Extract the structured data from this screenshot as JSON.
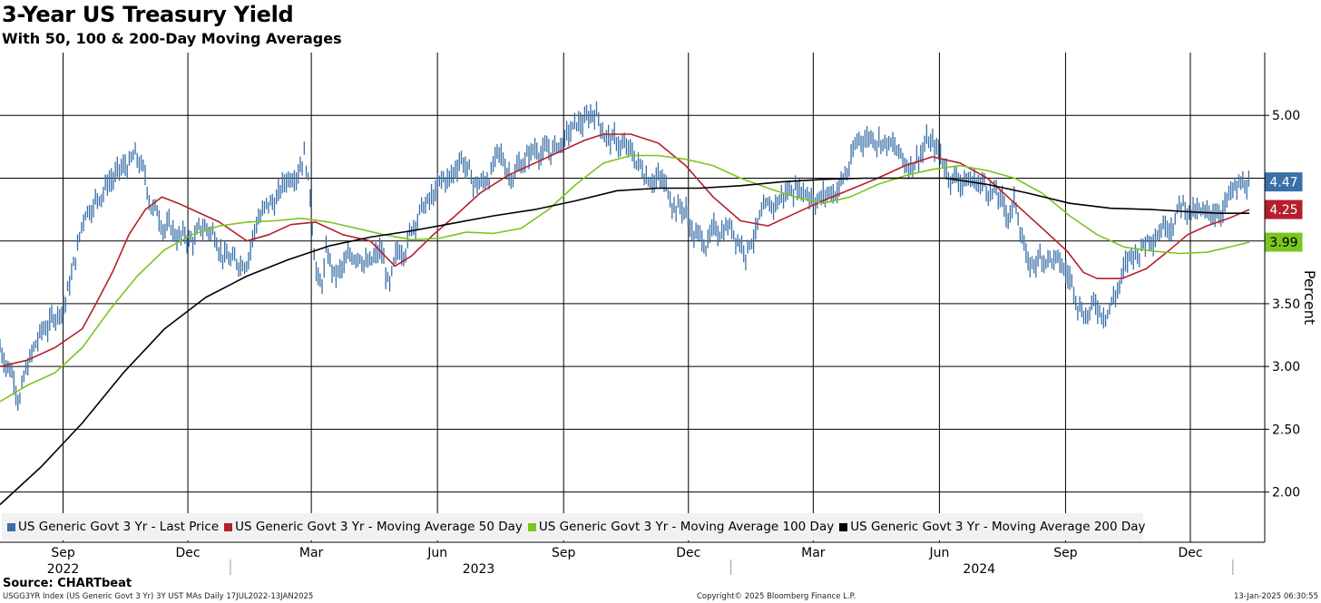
{
  "header": {
    "title": "3-Year US Treasury Yield",
    "subtitle": "With 50, 100 & 200-Day Moving Averages"
  },
  "source": "Source: CHARTbeat",
  "footer": {
    "left": "USGG3YR Index (US Generic Govt 3 Yr) 3Y UST MAs  Daily 17JUL2022-13JAN2025",
    "center": "Copyright© 2025 Bloomberg Finance L.P.",
    "right": "13-Jan-2025 06:30:55"
  },
  "colors": {
    "price": "#3a6fa8",
    "ma50": "#b3202c",
    "ma100": "#7cc520",
    "ma200": "#000000",
    "grid": "#000000"
  },
  "chart_data": {
    "type": "line",
    "title": "3-Year US Treasury Yield",
    "subtitle": "With 50, 100 & 200-Day Moving Averages",
    "ylabel": "Percent",
    "ylim": [
      1.6,
      5.5
    ],
    "yticks": [
      2.0,
      2.5,
      3.0,
      3.5,
      4.0,
      4.5,
      5.0
    ],
    "ytick_labels": [
      "2.00",
      "2.50",
      "3.00",
      "3.50",
      "4.00",
      "4.50",
      "5.00"
    ],
    "x_range_days": [
      0,
      911
    ],
    "x_ticks": [
      {
        "day": 46,
        "label": "Sep"
      },
      {
        "day": 137,
        "label": "Dec"
      },
      {
        "day": 227,
        "label": "Mar"
      },
      {
        "day": 319,
        "label": "Jun"
      },
      {
        "day": 411,
        "label": "Sep"
      },
      {
        "day": 502,
        "label": "Dec"
      },
      {
        "day": 593,
        "label": "Mar"
      },
      {
        "day": 685,
        "label": "Jun"
      },
      {
        "day": 777,
        "label": "Sep"
      },
      {
        "day": 868,
        "label": "Dec"
      }
    ],
    "year_labels": [
      {
        "label": "2022",
        "center_day": 46
      },
      {
        "label": "2023",
        "center_day": 349
      },
      {
        "label": "2024",
        "center_day": 714
      }
    ],
    "year_dividers": [
      168,
      533,
      899
    ],
    "series": [
      {
        "name": "US Generic Govt 3 Yr - Last Price",
        "color": "#3a6fa8",
        "points": [
          [
            0,
            3.15
          ],
          [
            10,
            2.95
          ],
          [
            14,
            2.78
          ],
          [
            22,
            3.05
          ],
          [
            30,
            3.25
          ],
          [
            40,
            3.4
          ],
          [
            48,
            3.55
          ],
          [
            55,
            3.85
          ],
          [
            62,
            4.25
          ],
          [
            70,
            4.35
          ],
          [
            80,
            4.5
          ],
          [
            90,
            4.55
          ],
          [
            98,
            4.65
          ],
          [
            104,
            4.55
          ],
          [
            110,
            4.3
          ],
          [
            118,
            4.18
          ],
          [
            128,
            4.05
          ],
          [
            140,
            4.0
          ],
          [
            150,
            4.1
          ],
          [
            158,
            4.05
          ],
          [
            165,
            3.88
          ],
          [
            172,
            3.8
          ],
          [
            180,
            3.9
          ],
          [
            188,
            4.2
          ],
          [
            200,
            4.3
          ],
          [
            210,
            4.5
          ],
          [
            218,
            4.65
          ],
          [
            222,
            4.75
          ],
          [
            226,
            4.4
          ],
          [
            230,
            3.85
          ],
          [
            234,
            3.6
          ],
          [
            238,
            3.9
          ],
          [
            244,
            3.7
          ],
          [
            250,
            3.75
          ],
          [
            256,
            3.85
          ],
          [
            262,
            3.95
          ],
          [
            270,
            3.8
          ],
          [
            278,
            3.9
          ],
          [
            284,
            3.6
          ],
          [
            290,
            3.85
          ],
          [
            296,
            4.0
          ],
          [
            305,
            4.25
          ],
          [
            314,
            4.3
          ],
          [
            322,
            4.45
          ],
          [
            330,
            4.5
          ],
          [
            336,
            4.7
          ],
          [
            340,
            4.6
          ],
          [
            345,
            4.45
          ],
          [
            352,
            4.45
          ],
          [
            362,
            4.65
          ],
          [
            372,
            4.55
          ],
          [
            382,
            4.65
          ],
          [
            392,
            4.75
          ],
          [
            400,
            4.7
          ],
          [
            410,
            4.78
          ],
          [
            420,
            4.9
          ],
          [
            428,
            4.95
          ],
          [
            434,
            5.05
          ],
          [
            440,
            4.9
          ],
          [
            446,
            4.8
          ],
          [
            454,
            4.75
          ],
          [
            462,
            4.65
          ],
          [
            470,
            4.55
          ],
          [
            478,
            4.55
          ],
          [
            486,
            4.4
          ],
          [
            494,
            4.3
          ],
          [
            500,
            4.25
          ],
          [
            506,
            4.05
          ],
          [
            514,
            4.0
          ],
          [
            522,
            4.05
          ],
          [
            530,
            4.15
          ],
          [
            538,
            4.05
          ],
          [
            544,
            3.95
          ],
          [
            548,
            4.05
          ],
          [
            554,
            4.15
          ],
          [
            560,
            4.2
          ],
          [
            570,
            4.35
          ],
          [
            580,
            4.45
          ],
          [
            590,
            4.4
          ],
          [
            600,
            4.35
          ],
          [
            610,
            4.42
          ],
          [
            618,
            4.55
          ],
          [
            626,
            4.8
          ],
          [
            634,
            4.85
          ],
          [
            642,
            4.85
          ],
          [
            650,
            4.75
          ],
          [
            660,
            4.6
          ],
          [
            668,
            4.68
          ],
          [
            676,
            4.8
          ],
          [
            684,
            4.7
          ],
          [
            692,
            4.55
          ],
          [
            700,
            4.5
          ],
          [
            710,
            4.48
          ],
          [
            718,
            4.45
          ],
          [
            726,
            4.38
          ],
          [
            734,
            4.2
          ],
          [
            740,
            4.3
          ],
          [
            746,
            4.05
          ],
          [
            750,
            3.75
          ],
          [
            756,
            3.85
          ],
          [
            764,
            3.9
          ],
          [
            772,
            3.8
          ],
          [
            780,
            3.7
          ],
          [
            786,
            3.55
          ],
          [
            792,
            3.45
          ],
          [
            798,
            3.48
          ],
          [
            804,
            3.45
          ],
          [
            812,
            3.55
          ],
          [
            818,
            3.7
          ],
          [
            824,
            3.85
          ],
          [
            832,
            3.95
          ],
          [
            838,
            4.05
          ],
          [
            846,
            4.15
          ],
          [
            854,
            4.2
          ],
          [
            862,
            4.3
          ],
          [
            868,
            4.25
          ],
          [
            874,
            4.2
          ],
          [
            880,
            4.15
          ],
          [
            886,
            4.25
          ],
          [
            892,
            4.3
          ],
          [
            898,
            4.35
          ],
          [
            904,
            4.4
          ],
          [
            911,
            4.47
          ]
        ]
      },
      {
        "name": "US Generic Govt 3 Yr - Moving Average 50 Day",
        "color": "#b3202c",
        "points": [
          [
            0,
            3.0
          ],
          [
            20,
            3.05
          ],
          [
            40,
            3.15
          ],
          [
            60,
            3.3
          ],
          [
            70,
            3.5
          ],
          [
            82,
            3.75
          ],
          [
            94,
            4.05
          ],
          [
            106,
            4.25
          ],
          [
            118,
            4.35
          ],
          [
            130,
            4.3
          ],
          [
            150,
            4.2
          ],
          [
            160,
            4.15
          ],
          [
            180,
            4.0
          ],
          [
            196,
            4.05
          ],
          [
            212,
            4.13
          ],
          [
            230,
            4.15
          ],
          [
            250,
            4.05
          ],
          [
            270,
            4.0
          ],
          [
            288,
            3.8
          ],
          [
            300,
            3.88
          ],
          [
            316,
            4.05
          ],
          [
            332,
            4.2
          ],
          [
            350,
            4.38
          ],
          [
            370,
            4.52
          ],
          [
            390,
            4.62
          ],
          [
            410,
            4.72
          ],
          [
            426,
            4.8
          ],
          [
            440,
            4.85
          ],
          [
            460,
            4.85
          ],
          [
            480,
            4.78
          ],
          [
            500,
            4.6
          ],
          [
            520,
            4.35
          ],
          [
            540,
            4.16
          ],
          [
            560,
            4.12
          ],
          [
            580,
            4.22
          ],
          [
            600,
            4.32
          ],
          [
            618,
            4.4
          ],
          [
            640,
            4.5
          ],
          [
            660,
            4.6
          ],
          [
            680,
            4.67
          ],
          [
            700,
            4.62
          ],
          [
            720,
            4.5
          ],
          [
            740,
            4.3
          ],
          [
            760,
            4.1
          ],
          [
            778,
            3.92
          ],
          [
            790,
            3.75
          ],
          [
            800,
            3.7
          ],
          [
            818,
            3.7
          ],
          [
            836,
            3.78
          ],
          [
            852,
            3.92
          ],
          [
            866,
            4.05
          ],
          [
            880,
            4.12
          ],
          [
            896,
            4.18
          ],
          [
            911,
            4.25
          ]
        ]
      },
      {
        "name": "US Generic Govt 3 Yr - Moving Average 100 Day",
        "color": "#7cc520",
        "points": [
          [
            0,
            2.72
          ],
          [
            20,
            2.85
          ],
          [
            40,
            2.95
          ],
          [
            60,
            3.15
          ],
          [
            80,
            3.45
          ],
          [
            100,
            3.72
          ],
          [
            120,
            3.93
          ],
          [
            140,
            4.05
          ],
          [
            160,
            4.12
          ],
          [
            180,
            4.15
          ],
          [
            200,
            4.16
          ],
          [
            220,
            4.18
          ],
          [
            240,
            4.15
          ],
          [
            260,
            4.1
          ],
          [
            280,
            4.05
          ],
          [
            300,
            4.01
          ],
          [
            320,
            4.02
          ],
          [
            340,
            4.07
          ],
          [
            360,
            4.06
          ],
          [
            380,
            4.1
          ],
          [
            400,
            4.25
          ],
          [
            420,
            4.45
          ],
          [
            440,
            4.62
          ],
          [
            460,
            4.68
          ],
          [
            480,
            4.68
          ],
          [
            500,
            4.65
          ],
          [
            520,
            4.6
          ],
          [
            540,
            4.5
          ],
          [
            560,
            4.42
          ],
          [
            580,
            4.35
          ],
          [
            600,
            4.3
          ],
          [
            620,
            4.35
          ],
          [
            640,
            4.45
          ],
          [
            660,
            4.52
          ],
          [
            680,
            4.57
          ],
          [
            700,
            4.6
          ],
          [
            720,
            4.56
          ],
          [
            740,
            4.5
          ],
          [
            760,
            4.38
          ],
          [
            780,
            4.2
          ],
          [
            800,
            4.05
          ],
          [
            820,
            3.95
          ],
          [
            840,
            3.92
          ],
          [
            860,
            3.9
          ],
          [
            880,
            3.91
          ],
          [
            896,
            3.95
          ],
          [
            911,
            3.99
          ]
        ]
      },
      {
        "name": "US Generic Govt 3 Yr - Moving Average 200 Day",
        "color": "#000000",
        "points": [
          [
            0,
            1.9
          ],
          [
            30,
            2.2
          ],
          [
            60,
            2.55
          ],
          [
            90,
            2.95
          ],
          [
            120,
            3.3
          ],
          [
            150,
            3.55
          ],
          [
            180,
            3.72
          ],
          [
            210,
            3.85
          ],
          [
            240,
            3.96
          ],
          [
            270,
            4.03
          ],
          [
            300,
            4.08
          ],
          [
            330,
            4.14
          ],
          [
            360,
            4.2
          ],
          [
            390,
            4.25
          ],
          [
            420,
            4.32
          ],
          [
            450,
            4.4
          ],
          [
            480,
            4.42
          ],
          [
            510,
            4.42
          ],
          [
            540,
            4.44
          ],
          [
            570,
            4.47
          ],
          [
            600,
            4.49
          ],
          [
            630,
            4.5
          ],
          [
            660,
            4.5
          ],
          [
            690,
            4.5
          ],
          [
            720,
            4.45
          ],
          [
            750,
            4.38
          ],
          [
            780,
            4.3
          ],
          [
            810,
            4.26
          ],
          [
            840,
            4.25
          ],
          [
            870,
            4.23
          ],
          [
            890,
            4.22
          ],
          [
            911,
            4.22
          ]
        ]
      }
    ],
    "end_labels": [
      {
        "label": "4.47",
        "value": 4.47,
        "color": "#3a6fa8",
        "text_color": "#ffffff"
      },
      {
        "label": "4.25",
        "value": 4.25,
        "color": "#b3202c",
        "text_color": "#ffffff"
      },
      {
        "label": "3.99",
        "value": 3.99,
        "color": "#7cc520",
        "text_color": "#000000"
      }
    ]
  }
}
